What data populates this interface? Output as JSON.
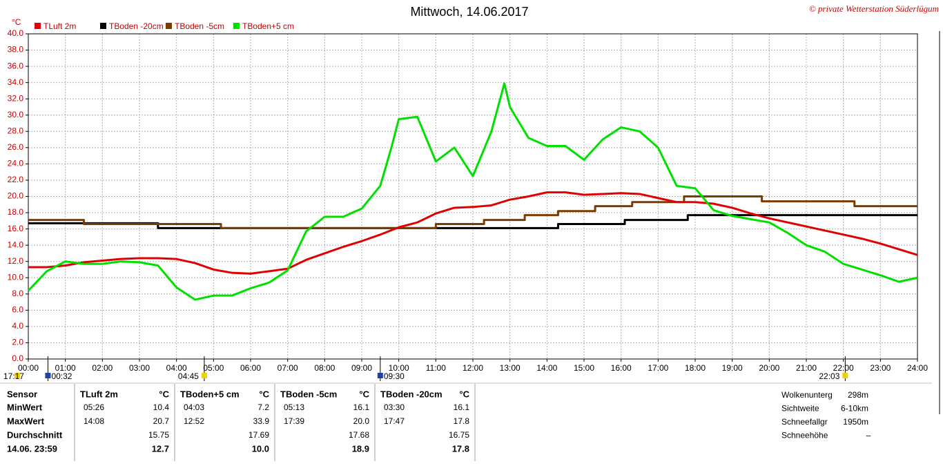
{
  "chart_data": {
    "type": "line",
    "title": "Mittwoch, 14.06.2017",
    "copyright": "© private Wetterstation Süderlügum",
    "y_label": "°C",
    "xlim": [
      0,
      24
    ],
    "ylim": [
      0,
      40
    ],
    "grid": true,
    "legend": "top-left",
    "xticks": [
      {
        "value": 0,
        "label": "00:00"
      },
      {
        "value": 1,
        "label": "01:00"
      },
      {
        "value": 2,
        "label": "02:00"
      },
      {
        "value": 3,
        "label": "03:00"
      },
      {
        "value": 4,
        "label": "04:00"
      },
      {
        "value": 5,
        "label": "05:00"
      },
      {
        "value": 6,
        "label": "06:00"
      },
      {
        "value": 7,
        "label": "07:00"
      },
      {
        "value": 8,
        "label": "08:00"
      },
      {
        "value": 9,
        "label": "09:00"
      },
      {
        "value": 10,
        "label": "10:00"
      },
      {
        "value": 11,
        "label": "11:00"
      },
      {
        "value": 12,
        "label": "12:00"
      },
      {
        "value": 13,
        "label": "13:00"
      },
      {
        "value": 14,
        "label": "14:00"
      },
      {
        "value": 15,
        "label": "15:00"
      },
      {
        "value": 16,
        "label": "16:00"
      },
      {
        "value": 17,
        "label": "17:00"
      },
      {
        "value": 18,
        "label": "18:00"
      },
      {
        "value": 19,
        "label": "19:00"
      },
      {
        "value": 20,
        "label": "20:00"
      },
      {
        "value": 21,
        "label": "21:00"
      },
      {
        "value": 22,
        "label": "22:00"
      },
      {
        "value": 23,
        "label": "23:00"
      },
      {
        "value": 24,
        "label": "24:00"
      }
    ],
    "yticks": [
      {
        "value": 0,
        "label": "0.0"
      },
      {
        "value": 2,
        "label": "2.0"
      },
      {
        "value": 4,
        "label": "4.0"
      },
      {
        "value": 6,
        "label": "6.0"
      },
      {
        "value": 8,
        "label": "8.0"
      },
      {
        "value": 10,
        "label": "10.0"
      },
      {
        "value": 12,
        "label": "12.0"
      },
      {
        "value": 14,
        "label": "14.0"
      },
      {
        "value": 16,
        "label": "16.0"
      },
      {
        "value": 18,
        "label": "18.0"
      },
      {
        "value": 20,
        "label": "20.0"
      },
      {
        "value": 22,
        "label": "22.0"
      },
      {
        "value": 24,
        "label": "24.0"
      },
      {
        "value": 26,
        "label": "26.0"
      },
      {
        "value": 28,
        "label": "28.0"
      },
      {
        "value": 30,
        "label": "30.0"
      },
      {
        "value": 32,
        "label": "32.0"
      },
      {
        "value": 34,
        "label": "34.0"
      },
      {
        "value": 36,
        "label": "36.0"
      },
      {
        "value": 38,
        "label": "38.0"
      },
      {
        "value": 40,
        "label": "40.0"
      }
    ],
    "series": [
      {
        "name": "TLuft 2m",
        "color": "#e00000",
        "x": [
          0,
          0.5,
          1,
          1.5,
          2,
          2.5,
          3,
          3.5,
          4,
          4.5,
          5,
          5.5,
          6,
          6.5,
          7,
          7.5,
          8,
          8.5,
          9,
          9.5,
          10,
          10.5,
          11,
          11.5,
          12,
          12.5,
          13,
          13.5,
          14,
          14.5,
          15,
          15.5,
          16,
          16.5,
          17,
          17.5,
          18,
          18.5,
          19,
          19.5,
          20,
          20.5,
          21,
          21.5,
          22,
          22.5,
          23,
          23.5,
          24
        ],
        "values": [
          11.3,
          11.3,
          11.5,
          11.9,
          12.1,
          12.3,
          12.4,
          12.4,
          12.3,
          11.8,
          11.0,
          10.6,
          10.5,
          10.8,
          11.1,
          12.2,
          13.0,
          13.8,
          14.5,
          15.3,
          16.2,
          16.8,
          17.9,
          18.6,
          18.7,
          18.9,
          19.6,
          20.0,
          20.5,
          20.5,
          20.2,
          20.3,
          20.4,
          20.3,
          19.8,
          19.3,
          19.3,
          19.1,
          18.6,
          17.9,
          17.3,
          16.8,
          16.3,
          15.8,
          15.3,
          14.8,
          14.2,
          13.5,
          12.8
        ]
      },
      {
        "name": "TBoden -20cm",
        "color": "#000000",
        "x": [
          0,
          3.5,
          3.5,
          14.3,
          14.3,
          16.1,
          16.1,
          17.8,
          17.8,
          24
        ],
        "values": [
          16.7,
          16.7,
          16.1,
          16.1,
          16.6,
          16.6,
          17.1,
          17.1,
          17.7,
          17.7
        ]
      },
      {
        "name": "TBoden -5cm",
        "color": "#7a3c00",
        "x": [
          0,
          1.5,
          1.5,
          5.2,
          5.2,
          11,
          11,
          12.3,
          12.3,
          13.4,
          13.4,
          14.3,
          14.3,
          15.3,
          15.3,
          16.3,
          16.3,
          17.7,
          17.7,
          19.8,
          19.8,
          22.3,
          22.3,
          24
        ],
        "values": [
          17.1,
          17.1,
          16.6,
          16.6,
          16.1,
          16.1,
          16.6,
          16.6,
          17.1,
          17.1,
          17.7,
          17.7,
          18.2,
          18.2,
          18.8,
          18.8,
          19.3,
          19.3,
          20.0,
          20.0,
          19.4,
          19.4,
          18.8,
          18.8
        ]
      },
      {
        "name": "TBoden+5 cm",
        "color": "#00e000",
        "x": [
          0,
          0.5,
          1,
          1.5,
          2,
          2.5,
          3,
          3.5,
          4,
          4.5,
          5,
          5.5,
          6,
          6.5,
          7,
          7.5,
          8,
          8.5,
          9,
          9.5,
          9.8,
          10,
          10.5,
          11,
          11.5,
          12,
          12.5,
          12.85,
          13,
          13.5,
          14,
          14.5,
          15,
          15.5,
          16,
          16.5,
          17,
          17.5,
          18,
          18.5,
          19,
          19.5,
          20,
          20.5,
          21,
          21.5,
          22,
          22.5,
          23,
          23.5,
          24
        ],
        "values": [
          8.4,
          10.8,
          12.0,
          11.7,
          11.7,
          12.0,
          11.9,
          11.5,
          8.8,
          7.3,
          7.8,
          7.8,
          8.7,
          9.4,
          10.9,
          15.7,
          17.5,
          17.5,
          18.5,
          21.3,
          26.0,
          29.5,
          29.8,
          24.3,
          26.0,
          22.5,
          28.0,
          33.9,
          31.0,
          27.2,
          26.2,
          26.2,
          24.5,
          27.0,
          28.5,
          28.0,
          26.0,
          21.3,
          21.0,
          18.3,
          17.6,
          17.2,
          16.8,
          15.5,
          14.0,
          13.2,
          11.7,
          11.0,
          10.3,
          9.5,
          10.0
        ]
      }
    ]
  },
  "markers": [
    {
      "label": "17:17",
      "x": -0.3
    },
    {
      "label": "00:32",
      "x": 0.53
    },
    {
      "label": "04:45",
      "x": 4.75
    },
    {
      "label": "09:30",
      "x": 9.5
    },
    {
      "label": "22:03",
      "x": 22.05
    }
  ],
  "stats": {
    "row_labels": [
      "Sensor",
      "MinWert",
      "MaxWert",
      "Durchschnitt",
      "14.06. 23:59"
    ],
    "sensors": [
      {
        "name": "TLuft 2m",
        "unit": "°C",
        "min_time": "05:26",
        "min": "10.4",
        "max_time": "14:08",
        "max": "20.7",
        "avg": "15.75",
        "last": "12.7"
      },
      {
        "name": "TBoden+5 cm",
        "unit": "°C",
        "min_time": "04:03",
        "min": "7.2",
        "max_time": "12:52",
        "max": "33.9",
        "avg": "17.69",
        "last": "10.0"
      },
      {
        "name": "TBoden -5cm",
        "unit": "°C",
        "min_time": "05:13",
        "min": "16.1",
        "max_time": "17:39",
        "max": "20.0",
        "avg": "17.68",
        "last": "18.9"
      },
      {
        "name": "TBoden -20cm",
        "unit": "°C",
        "min_time": "03:30",
        "min": "16.1",
        "max_time": "17:47",
        "max": "17.8",
        "avg": "16.75",
        "last": "17.8"
      }
    ]
  },
  "weather_info": [
    [
      "Wolkenunterg",
      "298m"
    ],
    [
      "Sichtweite",
      "6-10km"
    ],
    [
      "Schneefallgr",
      "1950m"
    ],
    [
      "Schneehöhe",
      "–"
    ]
  ]
}
